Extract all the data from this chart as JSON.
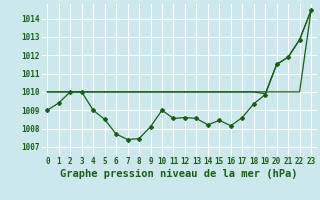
{
  "title": "Graphe pression niveau de la mer (hPa)",
  "background_color": "#cce8ec",
  "grid_color": "#ffffff",
  "line_color": "#1a5c1a",
  "x_values": [
    0,
    1,
    2,
    3,
    4,
    5,
    6,
    7,
    8,
    9,
    10,
    11,
    12,
    13,
    14,
    15,
    16,
    17,
    18,
    19,
    20,
    21,
    22,
    23
  ],
  "series1": [
    1009.0,
    1009.4,
    1010.0,
    1010.0,
    1009.0,
    1008.5,
    1007.7,
    1007.4,
    1007.45,
    1008.1,
    1009.0,
    1008.55,
    1008.6,
    1008.55,
    1008.2,
    1008.45,
    1008.15,
    1008.6,
    1009.35,
    1009.85,
    1011.5,
    1011.9,
    1012.85,
    1014.45
  ],
  "series2": [
    1010.0,
    1010.0,
    1010.0,
    1010.0,
    1010.0,
    1010.0,
    1010.0,
    1010.0,
    1010.0,
    1010.0,
    1010.0,
    1010.0,
    1010.0,
    1010.0,
    1010.0,
    1010.0,
    1010.0,
    1010.0,
    1010.0,
    1009.9,
    1011.5,
    1011.9,
    1012.85,
    1014.45
  ],
  "series3": [
    1010.0,
    1010.0,
    1010.0,
    1010.0,
    1010.0,
    1010.0,
    1010.0,
    1010.0,
    1010.0,
    1010.0,
    1010.0,
    1010.0,
    1010.0,
    1010.0,
    1010.0,
    1010.0,
    1010.0,
    1010.0,
    1010.0,
    1010.0,
    1010.0,
    1010.0,
    1010.0,
    1014.45
  ],
  "ylim": [
    1006.5,
    1014.8
  ],
  "yticks": [
    1007,
    1008,
    1009,
    1010,
    1011,
    1012,
    1013,
    1014
  ],
  "tick_fontsize": 5.5,
  "title_fontsize": 7.5
}
